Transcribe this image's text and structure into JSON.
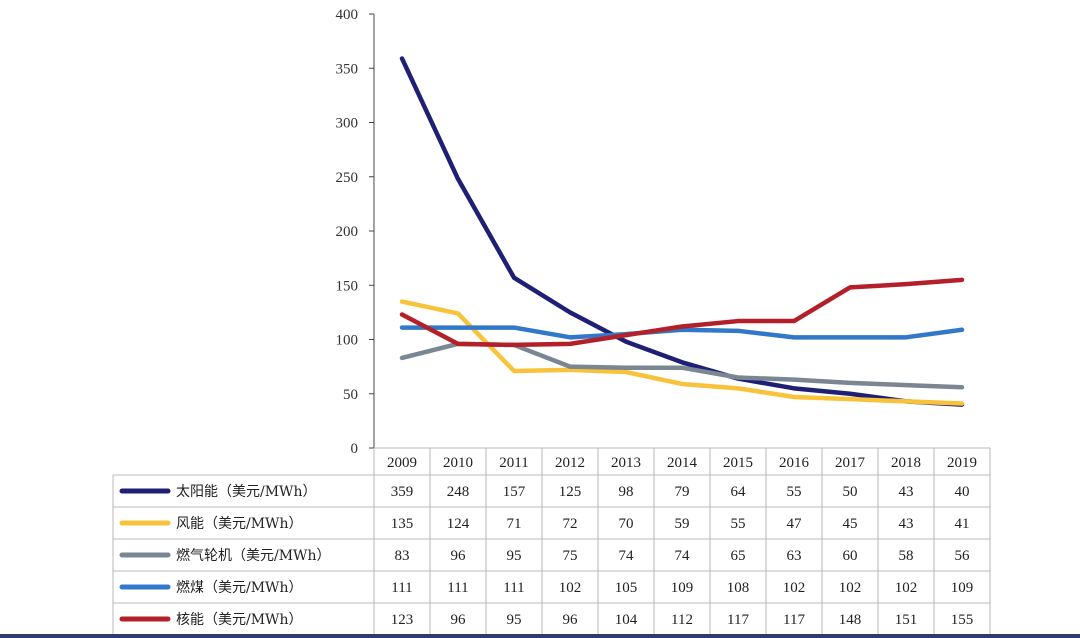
{
  "chart_data": {
    "type": "line",
    "categories": [
      "2009",
      "2010",
      "2011",
      "2012",
      "2013",
      "2014",
      "2015",
      "2016",
      "2017",
      "2018",
      "2019"
    ],
    "ylim": [
      0,
      400
    ],
    "yticks": [
      0,
      50,
      100,
      150,
      200,
      250,
      300,
      350,
      400
    ],
    "grid": false,
    "legend": "data-table-below",
    "series": [
      {
        "name": "太阳能（美元/MWh）",
        "color": "#1f1f75",
        "values": [
          359,
          248,
          157,
          125,
          98,
          79,
          64,
          55,
          50,
          43,
          40
        ]
      },
      {
        "name": "风能（美元/MWh）",
        "color": "#f8c23b",
        "values": [
          135,
          124,
          71,
          72,
          70,
          59,
          55,
          47,
          45,
          43,
          41
        ]
      },
      {
        "name": "燃气轮机（美元/MWh）",
        "color": "#7a8692",
        "values": [
          83,
          96,
          95,
          75,
          74,
          74,
          65,
          63,
          60,
          58,
          56
        ]
      },
      {
        "name": "燃煤（美元/MWh）",
        "color": "#3278c8",
        "values": [
          111,
          111,
          111,
          102,
          105,
          109,
          108,
          102,
          102,
          102,
          109
        ]
      },
      {
        "name": "核能（美元/MWh）",
        "color": "#b3202a",
        "values": [
          123,
          96,
          95,
          96,
          104,
          112,
          117,
          117,
          148,
          151,
          155
        ]
      }
    ]
  }
}
